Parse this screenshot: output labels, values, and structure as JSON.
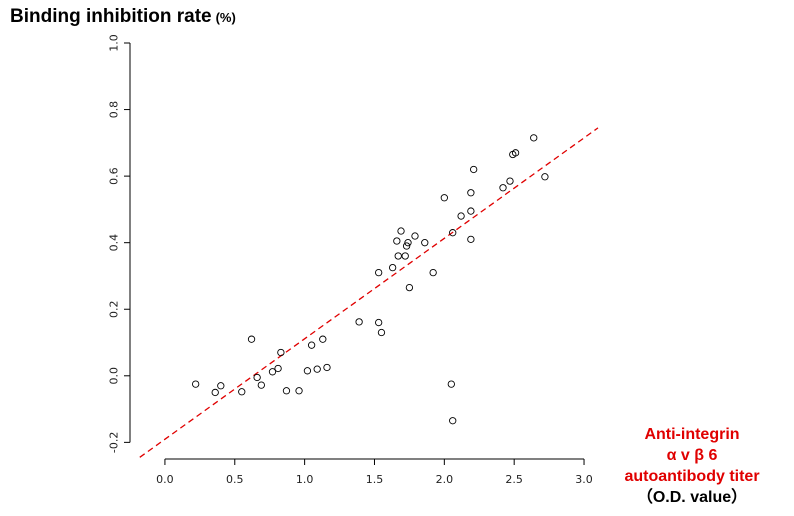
{
  "title": "Binding inhibition rate",
  "title_unit": "(%)",
  "xlabel_lines": [
    "Anti-integrin",
    "α v β 6",
    "autoantibody titer"
  ],
  "xlabel_unit": "（O.D. value）",
  "colors": {
    "regression_line": "#e00000",
    "axis_label": "#e00000",
    "points": "#000000"
  },
  "chart_data": {
    "type": "scatter",
    "xlim": [
      -0.25,
      3.1
    ],
    "ylim": [
      -0.25,
      1.0
    ],
    "xticks": [
      0.0,
      0.5,
      1.0,
      1.5,
      2.0,
      2.5,
      3.0
    ],
    "xtick_labels": [
      "0.0",
      "0.5",
      "1.0",
      "1.5",
      "2.0",
      "2.5",
      "3.0"
    ],
    "yticks": [
      -0.2,
      0.0,
      0.2,
      0.4,
      0.6,
      0.8,
      1.0
    ],
    "ytick_labels": [
      "-0.2",
      "0.0",
      "0.2",
      "0.4",
      "0.6",
      "0.8",
      "1.0"
    ],
    "grid": false,
    "regression_line": {
      "style": "dashed",
      "x": [
        -0.18,
        3.1
      ],
      "y": [
        -0.245,
        0.745
      ]
    },
    "points": [
      [
        0.22,
        -0.025
      ],
      [
        0.36,
        -0.05
      ],
      [
        0.4,
        -0.03
      ],
      [
        0.55,
        -0.048
      ],
      [
        0.62,
        0.11
      ],
      [
        0.66,
        -0.005
      ],
      [
        0.69,
        -0.028
      ],
      [
        0.77,
        0.012
      ],
      [
        0.81,
        0.022
      ],
      [
        0.83,
        0.07
      ],
      [
        0.87,
        -0.045
      ],
      [
        0.96,
        -0.045
      ],
      [
        1.02,
        0.015
      ],
      [
        1.05,
        0.092
      ],
      [
        1.09,
        0.02
      ],
      [
        1.13,
        0.11
      ],
      [
        1.16,
        0.025
      ],
      [
        1.39,
        0.162
      ],
      [
        1.53,
        0.16
      ],
      [
        1.53,
        0.31
      ],
      [
        1.55,
        0.13
      ],
      [
        1.63,
        0.325
      ],
      [
        1.66,
        0.405
      ],
      [
        1.67,
        0.36
      ],
      [
        1.69,
        0.435
      ],
      [
        1.72,
        0.36
      ],
      [
        1.73,
        0.39
      ],
      [
        1.74,
        0.4
      ],
      [
        1.75,
        0.265
      ],
      [
        1.79,
        0.42
      ],
      [
        1.86,
        0.4
      ],
      [
        1.92,
        0.31
      ],
      [
        2.0,
        0.535
      ],
      [
        2.05,
        -0.025
      ],
      [
        2.06,
        0.43
      ],
      [
        2.06,
        -0.135
      ],
      [
        2.12,
        0.48
      ],
      [
        2.19,
        0.41
      ],
      [
        2.19,
        0.495
      ],
      [
        2.19,
        0.55
      ],
      [
        2.21,
        0.62
      ],
      [
        2.42,
        0.565
      ],
      [
        2.47,
        0.585
      ],
      [
        2.49,
        0.665
      ],
      [
        2.51,
        0.67
      ],
      [
        2.64,
        0.715
      ],
      [
        2.72,
        0.598
      ]
    ]
  }
}
